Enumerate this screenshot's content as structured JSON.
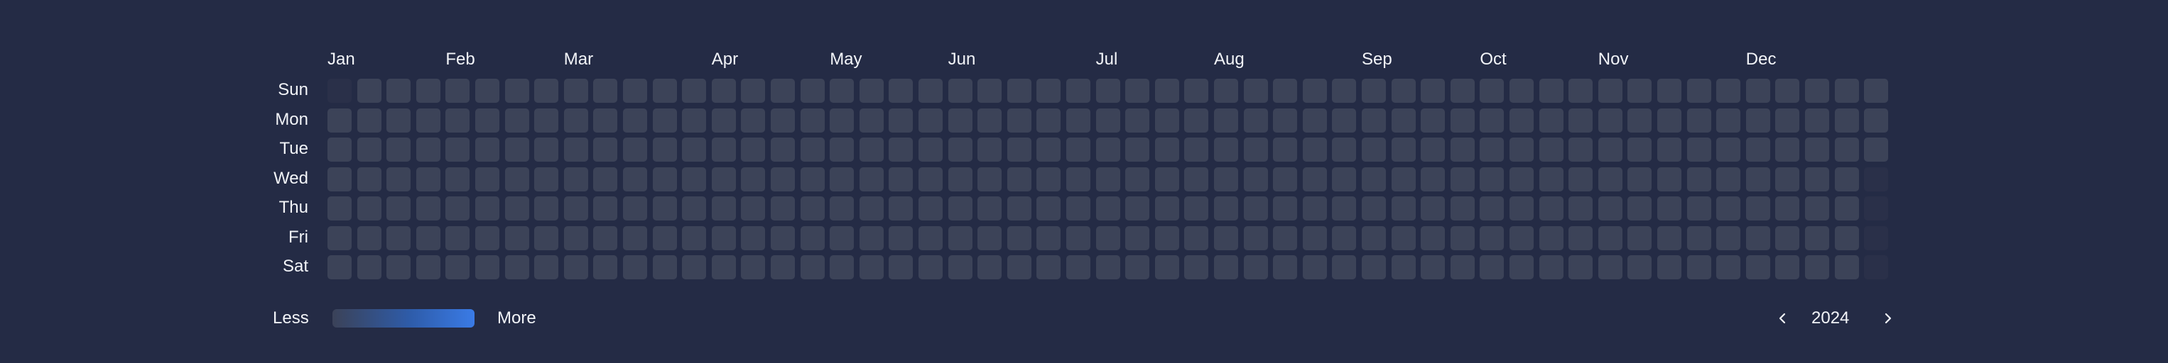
{
  "heatmap": {
    "months": [
      "Jan",
      "Feb",
      "Mar",
      "Apr",
      "May",
      "Jun",
      "Jul",
      "Aug",
      "Sep",
      "Oct",
      "Nov",
      "Dec"
    ],
    "days": [
      "Sun",
      "Mon",
      "Tue",
      "Wed",
      "Thu",
      "Fri",
      "Sat"
    ],
    "weeks": 53
  },
  "legend": {
    "less_label": "Less",
    "more_label": "More"
  },
  "year_nav": {
    "year": "2024",
    "prev_icon": "chevron-left-icon",
    "next_icon": "chevron-right-icon"
  },
  "colors": {
    "background": "#242b45",
    "cell": "#3c4358",
    "cell_empty": "#2a3049",
    "accent": "#3a7be6"
  }
}
